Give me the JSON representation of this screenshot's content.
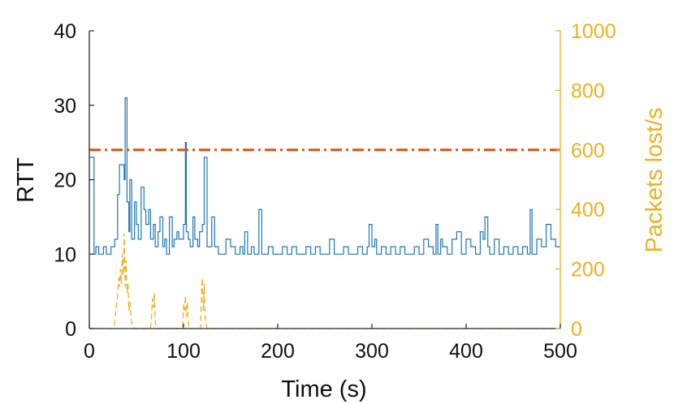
{
  "colors": {
    "rtt": "#1f77b4",
    "loss": "#edb120",
    "threshold": "#d95319",
    "axis": "#262626"
  },
  "chart_data": {
    "type": "line",
    "title": "",
    "xlabel": "Time (s)",
    "ylabel_left": "RTT",
    "ylabel_right": "Packets lost/s",
    "xlim": [
      0,
      500
    ],
    "ylim_left": [
      0,
      40
    ],
    "ylim_right": [
      0,
      1000
    ],
    "xticks": [
      "0",
      "100",
      "200",
      "300",
      "400",
      "500"
    ],
    "yticks_left": [
      "0",
      "10",
      "20",
      "30",
      "40"
    ],
    "yticks_right": [
      "0",
      "200",
      "400",
      "600",
      "800",
      "1000"
    ],
    "grid": false,
    "legend": "none",
    "series": [
      {
        "axis": "left",
        "style": "solid",
        "x": [
          0,
          5,
          7,
          10,
          15,
          18,
          23,
          27,
          30,
          32,
          35,
          37,
          38,
          40,
          42,
          43,
          45,
          48,
          50,
          52,
          55,
          58,
          60,
          63,
          65,
          68,
          70,
          73,
          75,
          78,
          80,
          82,
          85,
          88,
          90,
          93,
          95,
          98,
          100,
          102,
          103,
          105,
          107,
          110,
          112,
          115,
          117,
          120,
          122,
          125,
          130,
          133,
          137,
          140,
          145,
          150,
          155,
          160,
          163,
          165,
          168,
          172,
          175,
          180,
          183,
          187,
          190,
          195,
          200,
          205,
          210,
          215,
          220,
          225,
          230,
          235,
          240,
          245,
          250,
          255,
          260,
          265,
          270,
          275,
          280,
          285,
          290,
          295,
          297,
          300,
          303,
          305,
          310,
          315,
          320,
          325,
          330,
          335,
          340,
          345,
          350,
          355,
          360,
          365,
          368,
          370,
          373,
          375,
          380,
          385,
          390,
          395,
          400,
          405,
          410,
          415,
          418,
          420,
          423,
          425,
          430,
          435,
          440,
          445,
          450,
          455,
          460,
          465,
          468,
          470,
          475,
          480,
          485,
          490,
          495,
          500
        ],
        "y": [
          23,
          10,
          11,
          10,
          11,
          10,
          11,
          12,
          18,
          22,
          22,
          20,
          31,
          17,
          13,
          20,
          12,
          17,
          14,
          12,
          19,
          16,
          14,
          16,
          12,
          14,
          11,
          13,
          15,
          11,
          12,
          10,
          15,
          11,
          12,
          13,
          12,
          12,
          14,
          25,
          13,
          12,
          11,
          15,
          12,
          11,
          13,
          14,
          23,
          11,
          15,
          11,
          10,
          10,
          12,
          11,
          10,
          11,
          10,
          13,
          10,
          11,
          10,
          16,
          10,
          10,
          11,
          10,
          10,
          11,
          10,
          11,
          10,
          10,
          11,
          10,
          11,
          10,
          10,
          12,
          10,
          10,
          11,
          10,
          10,
          11,
          10,
          11,
          14,
          11,
          12,
          10,
          11,
          10,
          11,
          10,
          11,
          10,
          10,
          11,
          10,
          12,
          11,
          10,
          14,
          10,
          12,
          11,
          10,
          12,
          13,
          10,
          12,
          11,
          10,
          13,
          12,
          15,
          11,
          10,
          12,
          10,
          11,
          10,
          11,
          10,
          11,
          10,
          16,
          10,
          12,
          11,
          14,
          12,
          11,
          11
        ]
      },
      {
        "axis": "right",
        "style": "dashed",
        "x": [
          0,
          25,
          27,
          28,
          30,
          31,
          32,
          33,
          34,
          35,
          36,
          37,
          38,
          39,
          40,
          41,
          42,
          43,
          45,
          48,
          50,
          55,
          60,
          65,
          66,
          67,
          68,
          69,
          70,
          72,
          75,
          80,
          85,
          95,
          99,
          100,
          101,
          102,
          103,
          104,
          105,
          106,
          108,
          110,
          115,
          118,
          119,
          120,
          121,
          122,
          123,
          125,
          130,
          500
        ],
        "y": [
          0,
          0,
          20,
          60,
          110,
          170,
          140,
          200,
          150,
          250,
          180,
          320,
          140,
          230,
          120,
          150,
          60,
          90,
          20,
          0,
          0,
          0,
          0,
          0,
          40,
          100,
          70,
          120,
          20,
          0,
          0,
          0,
          0,
          0,
          0,
          80,
          60,
          110,
          40,
          90,
          30,
          0,
          0,
          0,
          0,
          0,
          120,
          170,
          60,
          150,
          30,
          0,
          0,
          0
        ]
      },
      {
        "axis": "left",
        "style": "dash-dot",
        "x": [
          0,
          500
        ],
        "y": [
          24,
          24
        ]
      }
    ]
  }
}
